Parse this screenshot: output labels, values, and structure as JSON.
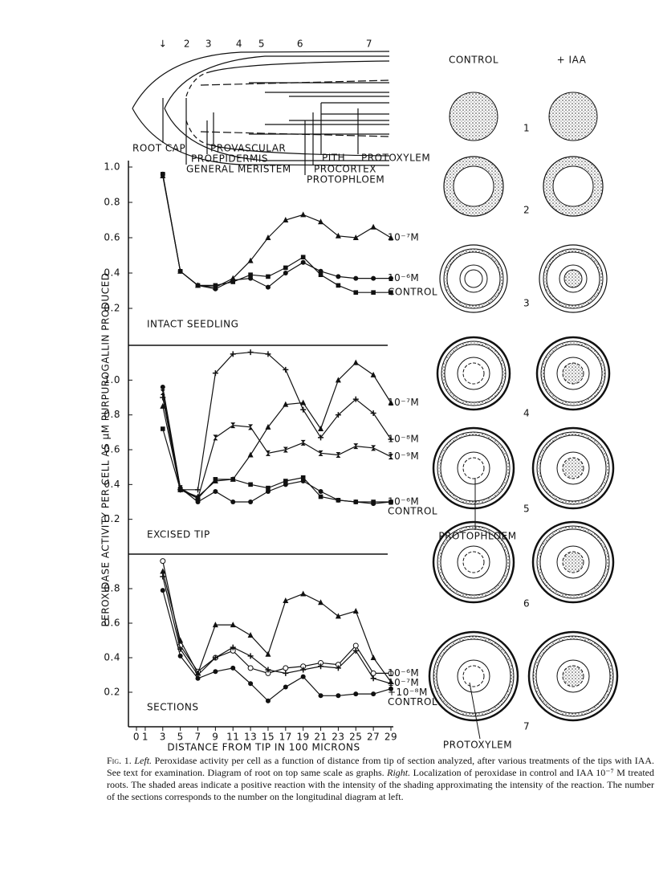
{
  "diagram": {
    "markers": [
      "↓",
      "2",
      "3",
      "4",
      "5",
      "6",
      "7"
    ],
    "labels": [
      "ROOT CAP",
      "PROVASCULAR",
      "PROEPIDERMIS",
      "GENERAL MERISTEM",
      "PITH",
      "PROTOXYLEM",
      "PROCORTEX",
      "PROTOPHLOEM"
    ]
  },
  "sections": {
    "columns": [
      "CONTROL",
      "+ IAA"
    ],
    "numbers": [
      "1",
      "2",
      "3",
      "4",
      "5",
      "6",
      "7"
    ],
    "labels": [
      "PROTOPHLOEM",
      "PROTOXYLEM"
    ]
  },
  "chart_data": [
    {
      "type": "line",
      "title": "INTACT SEEDLING",
      "ylabel": "PEROXIDASE ACTIVITY PER CELL AS µM PURPUROGALLIN PRODUCED",
      "x": [
        3,
        5,
        7,
        9,
        11,
        13,
        15,
        17,
        19,
        21,
        23,
        25,
        27,
        29
      ],
      "xlim": [
        0,
        29
      ],
      "ylim": [
        0,
        1
      ],
      "yticks": [
        {
          "value": 1,
          "label": "1.0"
        },
        0.8,
        0.6,
        0.4,
        0.2
      ],
      "series": [
        {
          "name": "10⁻⁷M",
          "color": "#111111",
          "marker": "triangle",
          "values": [
            0.95,
            0.41,
            0.33,
            0.32,
            0.37,
            0.47,
            0.6,
            0.7,
            0.73,
            0.69,
            0.61,
            0.6,
            0.66,
            0.6
          ]
        },
        {
          "name": "10⁻⁶M",
          "color": "#111111",
          "marker": "circle",
          "values": [
            0.96,
            0.41,
            0.33,
            0.31,
            0.36,
            0.37,
            0.32,
            0.4,
            0.46,
            0.41,
            0.38,
            0.37,
            0.37,
            0.37
          ]
        },
        {
          "name": "CONTROL",
          "color": "#111111",
          "marker": "square",
          "values": [
            0.96,
            0.41,
            0.33,
            0.33,
            0.35,
            0.39,
            0.38,
            0.43,
            0.49,
            0.39,
            0.33,
            0.29,
            0.29,
            0.29
          ]
        }
      ]
    },
    {
      "type": "line",
      "title": "EXCISED TIP",
      "x": [
        3,
        5,
        7,
        9,
        11,
        13,
        15,
        17,
        19,
        21,
        23,
        25,
        27,
        29
      ],
      "xlim": [
        0,
        29
      ],
      "ylim": [
        0,
        1.2
      ],
      "yticks": [
        {
          "value": 1,
          "label": "1.0"
        },
        0.8,
        0.6,
        0.4,
        0.2
      ],
      "series": [
        {
          "name": "10⁻⁷M",
          "color": "#111111",
          "marker": "triangle",
          "values": [
            0.85,
            0.37,
            0.33,
            0.42,
            0.43,
            0.57,
            0.73,
            0.86,
            0.87,
            0.72,
            1.0,
            1.1,
            1.03,
            0.87
          ]
        },
        {
          "name": "10⁻⁸M",
          "color": "#111111",
          "marker": "plus",
          "values": [
            0.9,
            0.37,
            0.37,
            1.04,
            1.15,
            1.16,
            1.15,
            1.06,
            0.83,
            0.67,
            0.8,
            0.89,
            0.81,
            0.66
          ]
        },
        {
          "name": "10⁻⁹M",
          "color": "#111111",
          "marker": "hourglass",
          "values": [
            0.93,
            0.38,
            0.32,
            0.67,
            0.74,
            0.73,
            0.58,
            0.6,
            0.64,
            0.58,
            0.57,
            0.62,
            0.61,
            0.56
          ]
        },
        {
          "name": "10⁻⁶M",
          "color": "#111111",
          "marker": "circle",
          "values": [
            0.96,
            0.38,
            0.3,
            0.36,
            0.3,
            0.3,
            0.36,
            0.4,
            0.42,
            0.36,
            0.31,
            0.3,
            0.29,
            0.3
          ]
        },
        {
          "name": "CONTROL",
          "color": "#111111",
          "marker": "square",
          "values": [
            0.72,
            0.37,
            0.32,
            0.43,
            0.43,
            0.4,
            0.38,
            0.42,
            0.44,
            0.33,
            0.31,
            0.3,
            0.3,
            0.3
          ]
        }
      ]
    },
    {
      "type": "line",
      "title": "SECTIONS",
      "xlabel": "DISTANCE FROM TIP IN 100 MICRONS",
      "x": [
        3,
        5,
        7,
        9,
        11,
        13,
        15,
        17,
        19,
        21,
        23,
        25,
        27,
        29
      ],
      "xlim": [
        0,
        29
      ],
      "ylim": [
        0,
        1
      ],
      "xticks": [
        0,
        1,
        3,
        5,
        7,
        9,
        11,
        13,
        15,
        17,
        19,
        21,
        23,
        25,
        27,
        29
      ],
      "yticks": [
        0.8,
        0.6,
        0.4,
        0.2
      ],
      "series": [
        {
          "name": "10⁻⁶M",
          "color": "#111111",
          "marker": "open-circle",
          "values": [
            0.96,
            0.47,
            0.32,
            0.4,
            0.44,
            0.34,
            0.31,
            0.34,
            0.35,
            0.37,
            0.36,
            0.47,
            0.31,
            0.31
          ]
        },
        {
          "name": "10⁻⁷M",
          "color": "#111111",
          "marker": "triangle",
          "values": [
            0.9,
            0.5,
            0.31,
            0.59,
            0.59,
            0.53,
            0.42,
            0.73,
            0.77,
            0.72,
            0.64,
            0.67,
            0.4,
            0.26
          ]
        },
        {
          "name": "+10⁻⁸M",
          "color": "#111111",
          "marker": "plus",
          "values": [
            0.87,
            0.45,
            0.3,
            0.4,
            0.46,
            0.41,
            0.33,
            0.31,
            0.33,
            0.35,
            0.34,
            0.44,
            0.28,
            0.25
          ]
        },
        {
          "name": "CONTROL",
          "color": "#111111",
          "marker": "circle",
          "values": [
            0.79,
            0.41,
            0.28,
            0.32,
            0.34,
            0.25,
            0.15,
            0.23,
            0.29,
            0.18,
            0.18,
            0.19,
            0.19,
            0.22
          ]
        }
      ]
    }
  ],
  "caption": [
    "Fig. 1.",
    "Left.",
    "Peroxidase activity per cell as a function of distance from tip of section analyzed, after various treatments of the tips with IAA. See text for examination. Diagram of root on top same scale as graphs.",
    "Right.",
    "Localization of peroxidase in control and IAA 10⁻⁷ M treated roots. The shaded areas indicate a positive reaction with the intensity of the shading approximating the intensity of the reaction. The number of the sections corresponds to the number on the longitudinal diagram at left."
  ]
}
